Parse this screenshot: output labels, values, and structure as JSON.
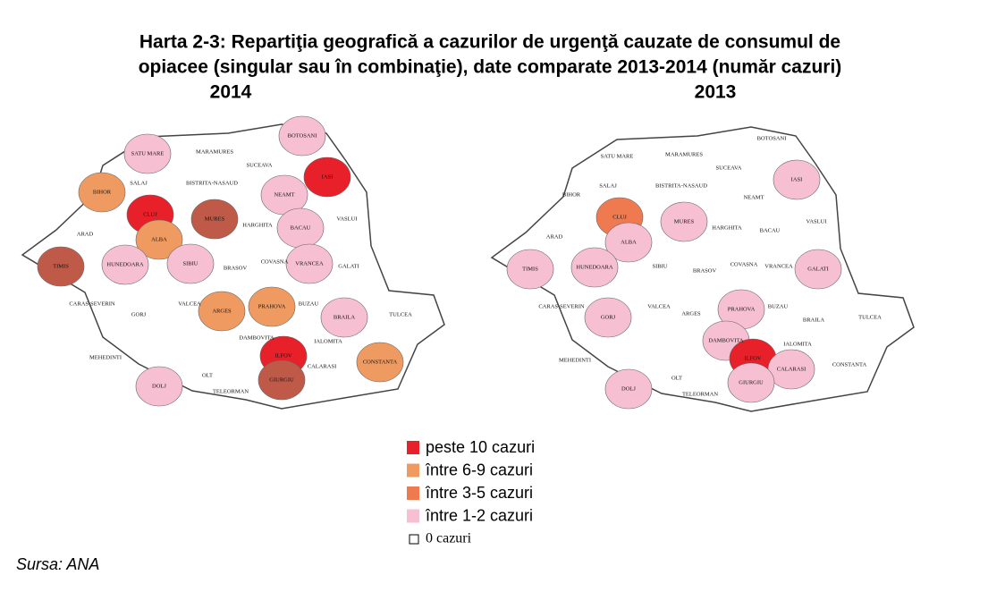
{
  "header": {
    "title_lines": [
      "Harta 2-3: Repartiţia geografică a cazurilor de urgenţă cauzate de consumul de",
      "opiacee (singular sau în combinaţie), date comparate 2013-2014 (număr cazuri)"
    ]
  },
  "maps": [
    {
      "year": "2014",
      "counties": [
        {
          "name": "SATU MARE",
          "color": "#f7bfd2"
        },
        {
          "name": "MARAMURES",
          "color": null
        },
        {
          "name": "BOTOSANI",
          "color": "#f7bfd2"
        },
        {
          "name": "IASI",
          "color": "#e8202a"
        },
        {
          "name": "SUCEAVA",
          "color": null
        },
        {
          "name": "BIHOR",
          "color": "#ef9a60"
        },
        {
          "name": "SALAJ",
          "color": null
        },
        {
          "name": "BISTRITA-NASAUD",
          "color": null
        },
        {
          "name": "NEAMT",
          "color": "#f7bfd2"
        },
        {
          "name": "CLUJ",
          "color": "#e8202a"
        },
        {
          "name": "MURES",
          "color": "#c05a48"
        },
        {
          "name": "HARGHITA",
          "color": null
        },
        {
          "name": "BACAU",
          "color": "#f7bfd2"
        },
        {
          "name": "VASLUI",
          "color": null
        },
        {
          "name": "ARAD",
          "color": null
        },
        {
          "name": "ALBA",
          "color": "#ef9a60"
        },
        {
          "name": "COVASNA",
          "color": null
        },
        {
          "name": "VRANCEA",
          "color": "#f7bfd2"
        },
        {
          "name": "GALATI",
          "color": null
        },
        {
          "name": "TIMIS",
          "color": "#c05a48"
        },
        {
          "name": "HUNEDOARA",
          "color": "#f7bfd2"
        },
        {
          "name": "SIBIU",
          "color": "#f7bfd2"
        },
        {
          "name": "BRASOV",
          "color": null
        },
        {
          "name": "CARAS-SEVERIN",
          "color": null
        },
        {
          "name": "VALCEA",
          "color": null
        },
        {
          "name": "ARGES",
          "color": "#ef9a60"
        },
        {
          "name": "PRAHOVA",
          "color": "#ef9a60"
        },
        {
          "name": "BUZAU",
          "color": null
        },
        {
          "name": "BRAILA",
          "color": "#f7bfd2"
        },
        {
          "name": "TULCEA",
          "color": null
        },
        {
          "name": "GORJ",
          "color": null
        },
        {
          "name": "DAMBOVITA",
          "color": null
        },
        {
          "name": "IALOMITA",
          "color": null
        },
        {
          "name": "MEHEDINTI",
          "color": null
        },
        {
          "name": "ILFOV",
          "color": "#e8202a"
        },
        {
          "name": "CONSTANTA",
          "color": "#ef9a60"
        },
        {
          "name": "CALARASI",
          "color": null
        },
        {
          "name": "DOLJ",
          "color": "#f7bfd2"
        },
        {
          "name": "OLT",
          "color": null
        },
        {
          "name": "TELEORMAN",
          "color": null
        },
        {
          "name": "GIURGIU",
          "color": "#c05a48"
        }
      ]
    },
    {
      "year": "2013",
      "counties": [
        {
          "name": "SATU MARE",
          "color": null
        },
        {
          "name": "MARAMURES",
          "color": null
        },
        {
          "name": "BOTOSANI",
          "color": null
        },
        {
          "name": "IASI",
          "color": "#f7bfd2"
        },
        {
          "name": "SUCEAVA",
          "color": null
        },
        {
          "name": "BIHOR",
          "color": null
        },
        {
          "name": "SALAJ",
          "color": null
        },
        {
          "name": "BISTRITA-NASAUD",
          "color": null
        },
        {
          "name": "NEAMT",
          "color": null
        },
        {
          "name": "CLUJ",
          "color": "#f07a50"
        },
        {
          "name": "MURES",
          "color": "#f7bfd2"
        },
        {
          "name": "HARGHITA",
          "color": null
        },
        {
          "name": "BACAU",
          "color": null
        },
        {
          "name": "VASLUI",
          "color": null
        },
        {
          "name": "ARAD",
          "color": null
        },
        {
          "name": "ALBA",
          "color": "#f7bfd2"
        },
        {
          "name": "COVASNA",
          "color": null
        },
        {
          "name": "VRANCEA",
          "color": null
        },
        {
          "name": "GALATI",
          "color": "#f7bfd2"
        },
        {
          "name": "TIMIS",
          "color": "#f7bfd2"
        },
        {
          "name": "HUNEDOARA",
          "color": "#f7bfd2"
        },
        {
          "name": "SIBIU",
          "color": null
        },
        {
          "name": "BRASOV",
          "color": null
        },
        {
          "name": "CARAS-SEVERIN",
          "color": null
        },
        {
          "name": "VALCEA",
          "color": null
        },
        {
          "name": "ARGES",
          "color": null
        },
        {
          "name": "PRAHOVA",
          "color": "#f7bfd2"
        },
        {
          "name": "BUZAU",
          "color": null
        },
        {
          "name": "BRAILA",
          "color": null
        },
        {
          "name": "TULCEA",
          "color": null
        },
        {
          "name": "GORJ",
          "color": "#f7bfd2"
        },
        {
          "name": "DAMBOVITA",
          "color": "#f7bfd2"
        },
        {
          "name": "IALOMITA",
          "color": null
        },
        {
          "name": "MEHEDINTI",
          "color": null
        },
        {
          "name": "ILFOV",
          "color": "#e8202a"
        },
        {
          "name": "CONSTANTA",
          "color": null
        },
        {
          "name": "CALARASI",
          "color": "#f7bfd2"
        },
        {
          "name": "DOLJ",
          "color": "#f7bfd2"
        },
        {
          "name": "OLT",
          "color": null
        },
        {
          "name": "TELEORMAN",
          "color": null
        },
        {
          "name": "GIURGIU",
          "color": "#f7bfd2"
        }
      ]
    }
  ],
  "legend": [
    {
      "label": "peste 10 cazuri",
      "color": "#e8202a"
    },
    {
      "label": "între 6-9 cazuri",
      "color": "#ef9a60"
    },
    {
      "label": "între 3-5 cazuri",
      "color": "#f07a50"
    },
    {
      "label": "între 1-2 cazuri",
      "color": "#f7bfd2"
    },
    {
      "label": "0 cazuri",
      "color": null
    }
  ],
  "source": "Sursa: ANA"
}
